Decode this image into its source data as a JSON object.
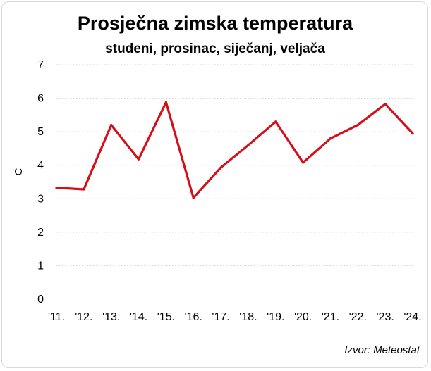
{
  "chart_data": {
    "type": "line",
    "title": "Prosječna zimska temperatura",
    "subtitle": "studeni, prosinac, siječanj, veljača",
    "xlabel": "",
    "ylabel": "C",
    "categories": [
      "'11.",
      "'12.",
      "'13.",
      "'14.",
      "'15.",
      "'16.",
      "'17.",
      "'18.",
      "'19.",
      "'20.",
      "'21.",
      "'22.",
      "'23.",
      "'24."
    ],
    "series": [
      {
        "name": "Prosječna zimska temperatura",
        "values": [
          3.33,
          3.28,
          5.2,
          4.18,
          5.88,
          3.03,
          3.93,
          4.6,
          5.3,
          4.08,
          4.8,
          5.2,
          5.83,
          4.95
        ]
      }
    ],
    "ylim": [
      0,
      7
    ],
    "yticks": [
      0,
      1,
      2,
      3,
      4,
      5,
      6,
      7
    ],
    "grid": true,
    "legend": "none",
    "line_color": "#d40f1a"
  },
  "source": "Izvor: Meteostat"
}
